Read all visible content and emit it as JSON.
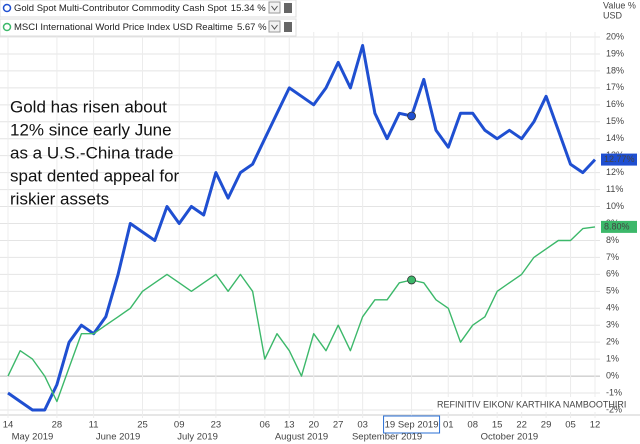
{
  "chart_data": {
    "type": "line",
    "annotation": [
      "Gold has risen about",
      "12% since early June",
      "as a U.S.-China trade",
      "spat dented appeal for",
      "riskier assets"
    ],
    "axis_title": [
      "Value %",
      "USD"
    ],
    "credit": "REFINITIV EIKON/ KARTHIKA NAMBOOTHIRI",
    "categories": [
      "14",
      null,
      null,
      null,
      "28",
      null,
      null,
      "11",
      null,
      null,
      null,
      "25",
      null,
      null,
      "09",
      null,
      null,
      "23",
      null,
      null,
      null,
      "06",
      null,
      "13",
      null,
      "20",
      null,
      "27",
      null,
      "03",
      null,
      null,
      null,
      "19 Sep 2019",
      null,
      null,
      "01",
      null,
      "08",
      null,
      "15",
      null,
      "22",
      null,
      "29",
      null,
      "05",
      null,
      "12"
    ],
    "month_labels": [
      "May 2019",
      "June 2019",
      "July 2019",
      "August 2019",
      "September 2019",
      "October 2019"
    ],
    "series": [
      {
        "name": "Gold Spot Multi-Contributor Commodity Cash Spot",
        "legend_value": "15.34 %",
        "end_label": "12.77%",
        "color": "#1f4fd1",
        "values": [
          -1,
          -1.5,
          -2,
          -2,
          -0.5,
          2,
          3,
          2.5,
          3.5,
          6,
          9,
          8.5,
          8,
          10,
          9,
          10,
          9.5,
          12,
          10.5,
          12,
          12.5,
          14,
          15.5,
          17,
          16.5,
          16,
          17,
          18.5,
          17,
          19.5,
          15.5,
          14,
          15.5,
          15.34,
          17.5,
          14.5,
          13.5,
          15.5,
          15.5,
          14.5,
          14,
          14.5,
          14,
          15,
          16.5,
          14.5,
          12.5,
          12,
          12.77
        ]
      },
      {
        "name": "MSCI International World Price Index USD Realtime",
        "legend_value": "5.67 %",
        "end_label": "8.80%",
        "color": "#3cb86a",
        "values": [
          0,
          1.5,
          1,
          0,
          -1.5,
          0.5,
          2.5,
          2.5,
          3,
          3.5,
          4,
          5,
          5.5,
          6,
          5.5,
          5,
          5.5,
          6,
          5,
          6,
          5,
          1,
          2.5,
          1.5,
          0,
          2.5,
          1.5,
          3,
          1.5,
          3.5,
          4.5,
          4.5,
          5.5,
          5.67,
          5.5,
          4.5,
          4,
          2,
          3,
          3.5,
          5,
          5.5,
          6,
          7,
          7.5,
          8,
          8,
          8.7,
          8.8
        ]
      }
    ],
    "ylim": [
      -2,
      20
    ],
    "yticks": [
      {
        "value": -2,
        "label": "-2%"
      },
      {
        "value": -1,
        "label": "-1%"
      },
      {
        "value": 0,
        "label": "0%"
      },
      {
        "value": 1,
        "label": "1%"
      },
      {
        "value": 2,
        "label": "2%"
      },
      {
        "value": 3,
        "label": "3%"
      },
      {
        "value": 4,
        "label": "4%"
      },
      {
        "value": 5,
        "label": "5%"
      },
      {
        "value": 6,
        "label": "6%"
      },
      {
        "value": 7,
        "label": "7%"
      },
      {
        "value": 8,
        "label": "8%"
      },
      {
        "value": 9,
        "label": "9%"
      },
      {
        "value": 10,
        "label": "10%"
      },
      {
        "value": 11,
        "label": "11%"
      },
      {
        "value": 12,
        "label": "12%"
      },
      {
        "value": 13,
        "label": "13%"
      },
      {
        "value": 14,
        "label": "14%"
      },
      {
        "value": 15,
        "label": "15%"
      },
      {
        "value": 16,
        "label": "16%"
      },
      {
        "value": 17,
        "label": "17%"
      },
      {
        "value": 18,
        "label": "18%"
      },
      {
        "value": 19,
        "label": "19%"
      },
      {
        "value": 20,
        "label": "20%"
      }
    ],
    "grid": true,
    "highlight_index": 33
  }
}
